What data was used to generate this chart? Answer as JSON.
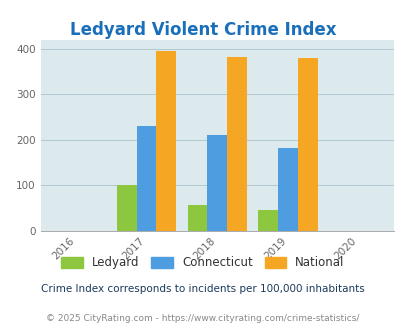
{
  "title": "Ledyard Violent Crime Index",
  "years": [
    2016,
    2017,
    2018,
    2019,
    2020
  ],
  "bar_years": [
    2017,
    2018,
    2019
  ],
  "ledyard": [
    100,
    57,
    45
  ],
  "connecticut": [
    230,
    210,
    183
  ],
  "national": [
    395,
    382,
    379
  ],
  "colors": {
    "ledyard": "#8dc63f",
    "connecticut": "#4d9de0",
    "national": "#f5a623"
  },
  "ylim": [
    0,
    420
  ],
  "yticks": [
    0,
    100,
    200,
    300,
    400
  ],
  "plot_bg": "#dce9ed",
  "title_color": "#1a6fba",
  "title_fontsize": 12,
  "legend_labels": [
    "Ledyard",
    "Connecticut",
    "National"
  ],
  "footnote1": "Crime Index corresponds to incidents per 100,000 inhabitants",
  "footnote2": "© 2025 CityRating.com - https://www.cityrating.com/crime-statistics/",
  "bar_width": 0.28
}
